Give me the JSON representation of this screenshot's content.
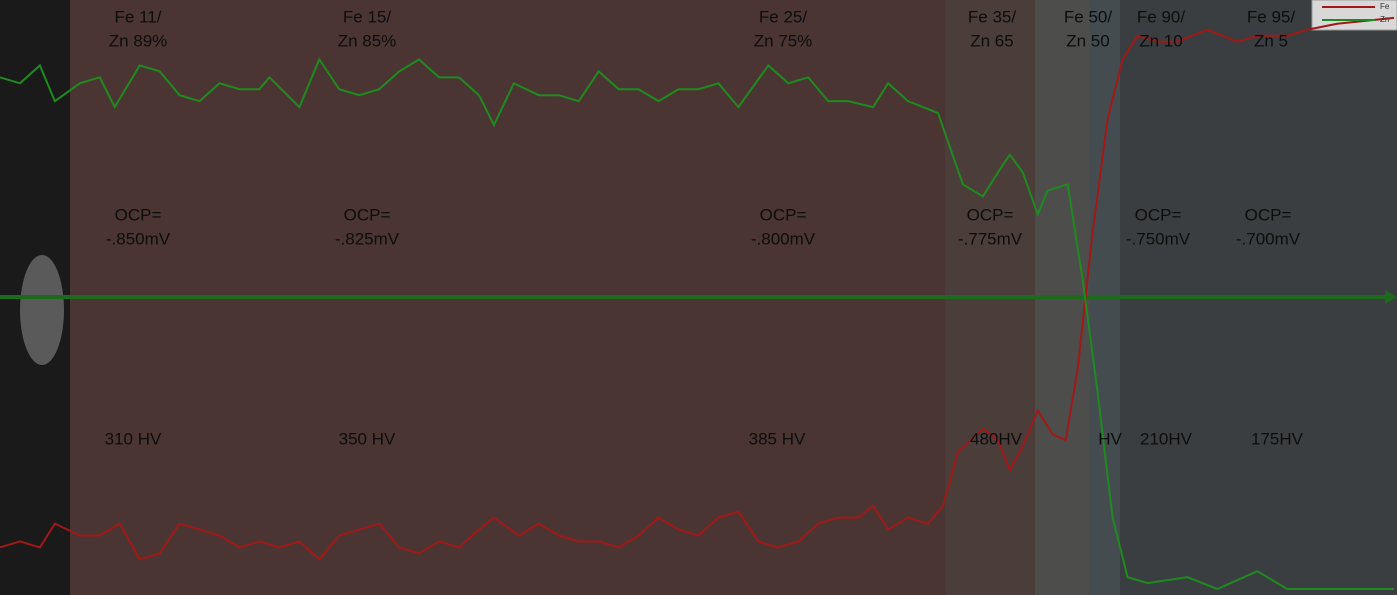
{
  "chart_data": {
    "type": "line",
    "xlim": [
      0,
      1400
    ],
    "ylim": [
      0,
      100
    ],
    "series": [
      {
        "name": "Fe",
        "color": "#a01818",
        "x": [
          0,
          20,
          40,
          55,
          80,
          100,
          120,
          140,
          160,
          180,
          200,
          220,
          240,
          260,
          280,
          300,
          320,
          340,
          360,
          380,
          400,
          420,
          440,
          460,
          480,
          495,
          520,
          540,
          560,
          580,
          600,
          620,
          640,
          660,
          680,
          700,
          720,
          740,
          760,
          780,
          800,
          820,
          840,
          860,
          875,
          890,
          910,
          930,
          945,
          960,
          985,
          1000,
          1012,
          1025,
          1040,
          1055,
          1068,
          1080,
          1095,
          1110,
          1125,
          1140,
          1160,
          1180,
          1210,
          1240,
          1260,
          1290,
          1310,
          1340,
          1397
        ],
        "values": [
          8,
          9,
          8,
          12,
          10,
          10,
          12,
          6,
          7,
          12,
          11,
          10,
          8,
          9,
          8,
          9,
          6,
          10,
          11,
          12,
          8,
          7,
          9,
          8,
          11,
          13,
          10,
          12,
          10,
          9,
          9,
          8,
          10,
          13,
          11,
          10,
          13,
          14,
          9,
          8,
          9,
          12,
          13,
          13,
          15,
          11,
          13,
          12,
          15,
          24,
          28,
          26,
          21,
          25,
          31,
          27,
          26,
          38,
          61,
          80,
          90,
          94,
          93,
          93,
          95,
          93,
          94,
          94,
          95,
          96,
          97
        ]
      },
      {
        "name": "Zn",
        "color": "#1f8a1f",
        "x": [
          0,
          20,
          40,
          55,
          80,
          100,
          115,
          140,
          160,
          180,
          200,
          220,
          240,
          260,
          270,
          300,
          320,
          340,
          360,
          380,
          400,
          420,
          440,
          460,
          480,
          495,
          515,
          540,
          560,
          580,
          600,
          620,
          640,
          660,
          680,
          700,
          720,
          740,
          770,
          790,
          810,
          830,
          850,
          875,
          890,
          910,
          940,
          965,
          985,
          1000,
          1012,
          1025,
          1040,
          1050,
          1070,
          1085,
          1100,
          1115,
          1130,
          1150,
          1190,
          1220,
          1260,
          1290,
          1320,
          1397
        ],
        "values": [
          87,
          86,
          89,
          83,
          86,
          87,
          82,
          89,
          88,
          84,
          83,
          86,
          85,
          85,
          87,
          82,
          90,
          85,
          84,
          85,
          88,
          90,
          87,
          87,
          84,
          79,
          86,
          84,
          84,
          83,
          88,
          85,
          85,
          83,
          85,
          85,
          86,
          82,
          89,
          86,
          87,
          83,
          83,
          82,
          86,
          83,
          81,
          69,
          67,
          71,
          74,
          71,
          64,
          68,
          69,
          53,
          34,
          13,
          3,
          2,
          3,
          1,
          4,
          1,
          1,
          1
        ]
      }
    ],
    "legend": "upper right",
    "composition": [
      [
        "Fe 11/",
        "Zn 89%"
      ],
      [
        "Fe 15/",
        "Zn 85%"
      ],
      [
        "Fe 25/",
        "Zn 75%"
      ],
      [
        "Fe 35/",
        "Zn 65"
      ],
      [
        "Fe 50/",
        "Zn 50"
      ],
      [
        "Fe 90/",
        "Zn 10"
      ],
      [
        "Fe 95/",
        "Zn 5"
      ]
    ],
    "ocp": [
      [
        "OCP=",
        "-.850mV"
      ],
      [
        "OCP=",
        "-.825mV"
      ],
      [
        "OCP=",
        "-.800mV"
      ],
      [
        "OCP=",
        "-.775mV"
      ],
      [
        "OCP=",
        "-.750mV"
      ],
      [
        "OCP=",
        "-.700mV"
      ]
    ],
    "hardness": [
      "310 HV",
      "350 HV",
      "385 HV",
      "480HV",
      "HV",
      "210HV",
      "175HV"
    ]
  }
}
